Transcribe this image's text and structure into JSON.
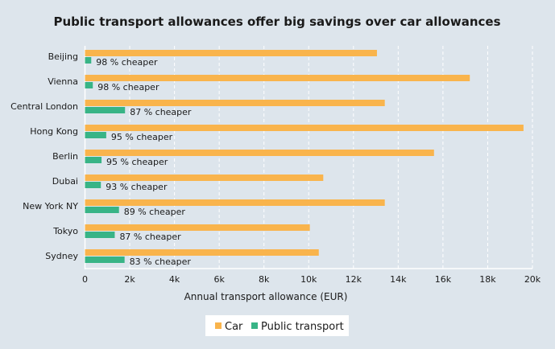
{
  "chart_data": {
    "type": "bar",
    "orientation": "horizontal",
    "title": "Public transport allowances offer big savings over car allowances",
    "xlabel": "Annual transport allowance (EUR)",
    "ylabel": "",
    "xlim": [
      0,
      20000
    ],
    "xticks": [
      0,
      2000,
      4000,
      6000,
      8000,
      10000,
      12000,
      14000,
      16000,
      18000,
      20000
    ],
    "xtick_labels": [
      "0",
      "2k",
      "4k",
      "6k",
      "8k",
      "10k",
      "12k",
      "14k",
      "16k",
      "18k",
      "20k"
    ],
    "grid": "vertical dashed",
    "legend_placement": "bottom",
    "categories": [
      "Beijing",
      "Vienna",
      "Central London",
      "Hong Kong",
      "Berlin",
      "Dubai",
      "New York NY",
      "Tokyo",
      "Sydney"
    ],
    "series": [
      {
        "name": "Car",
        "color": "#f9b44c",
        "values": [
          13050,
          17200,
          13400,
          19600,
          15600,
          10650,
          13400,
          10050,
          10450
        ]
      },
      {
        "name": "Public transport",
        "color": "#38b486",
        "values": [
          280,
          350,
          1790,
          950,
          740,
          710,
          1520,
          1330,
          1770
        ]
      }
    ],
    "annotations": [
      "98 % cheaper",
      "98 % cheaper",
      "87 % cheaper",
      "95 % cheaper",
      "95 % cheaper",
      "93 % cheaper",
      "89 % cheaper",
      "87 % cheaper",
      "83 % cheaper"
    ]
  }
}
